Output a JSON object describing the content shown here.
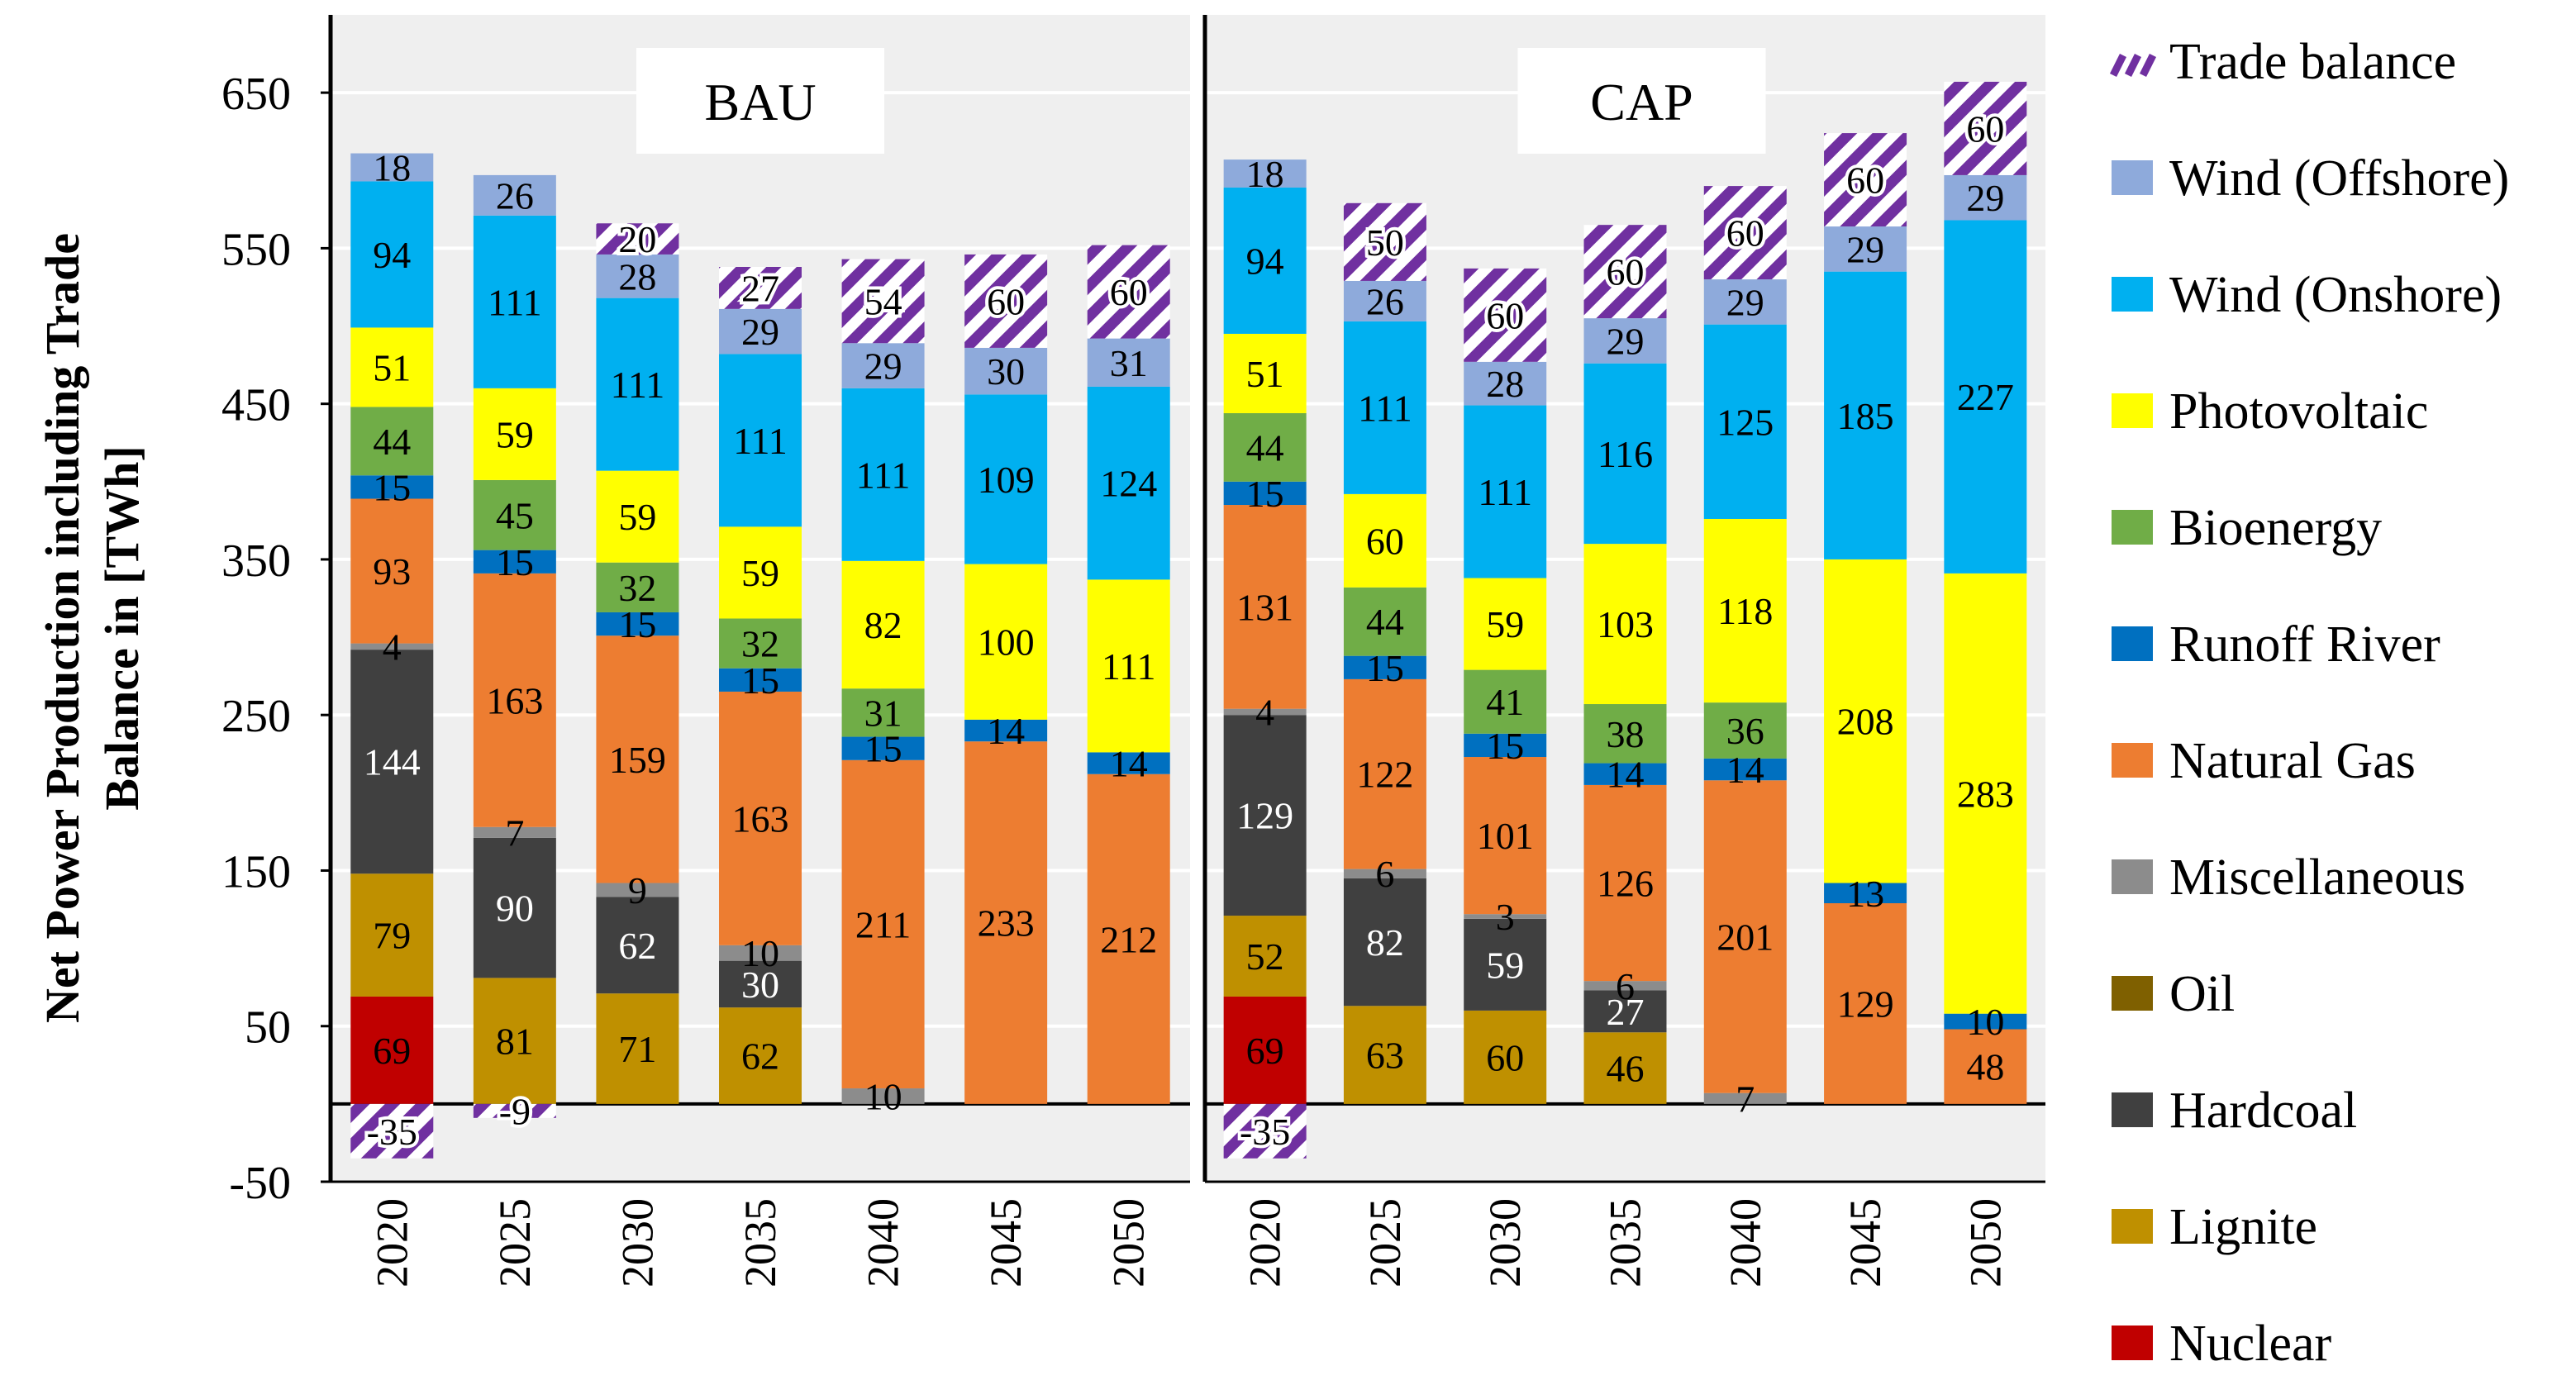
{
  "chart_data": {
    "type": "bar",
    "stacked": true,
    "ylabel": "Net Power Production including Trade Balance in [TWh]",
    "ylim": [
      -50,
      700
    ],
    "yticks": [
      650,
      550,
      450,
      350,
      250,
      150,
      50,
      -50
    ],
    "categories": [
      "2020",
      "2025",
      "2030",
      "2035",
      "2040",
      "2045",
      "2050"
    ],
    "legend": [
      "Trade balance",
      "Wind (Offshore)",
      "Wind (Onshore)",
      "Photovoltaic",
      "Bioenergy",
      "Runoff River",
      "Natural Gas",
      "Miscellaneous",
      "Oil",
      "Hardcoal",
      "Lignite",
      "Nuclear"
    ],
    "colors": {
      "Nuclear": "#c00000",
      "Lignite": "#bf9000",
      "Hardcoal": "#404040",
      "Oil": "#7f6000",
      "Miscellaneous": "#8c8c8c",
      "Natural Gas": "#ed7d31",
      "Runoff River": "#0070c0",
      "Bioenergy": "#70ad47",
      "Photovoltaic": "#ffff00",
      "Wind (Onshore)": "#00b0f0",
      "Wind (Offshore)": "#8eaadb",
      "Trade balance": "#7030a0"
    },
    "panels": [
      {
        "title": "BAU",
        "series": [
          {
            "name": "Nuclear",
            "values": [
              69,
              0,
              0,
              0,
              0,
              0,
              0
            ],
            "labels": [
              "69",
              "",
              "",
              "",
              "",
              "",
              ""
            ]
          },
          {
            "name": "Lignite",
            "values": [
              79,
              81,
              71,
              62,
              0,
              0,
              0
            ],
            "labels": [
              "79",
              "81",
              "71",
              "62",
              "",
              "",
              ""
            ]
          },
          {
            "name": "Oil",
            "values": [
              0,
              0,
              0,
              0,
              0,
              0,
              0
            ],
            "labels": [
              "",
              "",
              "",
              "",
              "",
              "",
              ""
            ]
          },
          {
            "name": "Hardcoal",
            "values": [
              144,
              90,
              62,
              30,
              0,
              0,
              0
            ],
            "labels": [
              "144",
              "90",
              "62",
              "30",
              "",
              "",
              ""
            ]
          },
          {
            "name": "Miscellaneous",
            "values": [
              4,
              7,
              9,
              10,
              10,
              0,
              0
            ],
            "labels": [
              "4",
              "7",
              "9",
              "10",
              "10",
              "",
              ""
            ]
          },
          {
            "name": "Natural Gas",
            "values": [
              93,
              163,
              159,
              163,
              211,
              233,
              212
            ],
            "labels": [
              "93",
              "163",
              "159",
              "163",
              "211",
              "233",
              "212"
            ]
          },
          {
            "name": "Runoff River",
            "values": [
              15,
              15,
              15,
              15,
              15,
              14,
              14
            ],
            "labels": [
              "15",
              "15",
              "15",
              "15",
              "15",
              "14",
              "14"
            ]
          },
          {
            "name": "Bioenergy",
            "values": [
              44,
              45,
              32,
              32,
              31,
              0,
              0
            ],
            "labels": [
              "44",
              "45",
              "32",
              "32",
              "31",
              "",
              ""
            ]
          },
          {
            "name": "Photovoltaic",
            "values": [
              51,
              59,
              59,
              59,
              82,
              100,
              111
            ],
            "labels": [
              "51",
              "59",
              "59",
              "59",
              "82",
              "100",
              "111"
            ]
          },
          {
            "name": "Wind (Onshore)",
            "values": [
              94,
              111,
              111,
              111,
              111,
              109,
              124
            ],
            "labels": [
              "94",
              "111",
              "111",
              "111",
              "111",
              "109",
              "124"
            ]
          },
          {
            "name": "Wind (Offshore)",
            "values": [
              18,
              26,
              28,
              29,
              29,
              30,
              31
            ],
            "labels": [
              "18",
              "26",
              "28",
              "29",
              "29",
              "30",
              "31"
            ]
          },
          {
            "name": "Trade balance",
            "values": [
              -35,
              -9,
              20,
              27,
              54,
              60,
              60
            ],
            "labels": [
              "-35",
              "-9",
              "20",
              "27",
              "54",
              "60",
              "60"
            ]
          }
        ]
      },
      {
        "title": "CAP",
        "series": [
          {
            "name": "Nuclear",
            "values": [
              69,
              0,
              0,
              0,
              0,
              0,
              0
            ],
            "labels": [
              "69",
              "",
              "",
              "",
              "",
              "",
              ""
            ]
          },
          {
            "name": "Lignite",
            "values": [
              52,
              63,
              60,
              46,
              0,
              0,
              0
            ],
            "labels": [
              "52",
              "63",
              "60",
              "46",
              "",
              "",
              ""
            ]
          },
          {
            "name": "Oil",
            "values": [
              0,
              0,
              0,
              0,
              0,
              0,
              0
            ],
            "labels": [
              "",
              "",
              "",
              "",
              "",
              "",
              ""
            ]
          },
          {
            "name": "Hardcoal",
            "values": [
              129,
              82,
              59,
              27,
              0,
              0,
              0
            ],
            "labels": [
              "129",
              "82",
              "59",
              "27",
              "",
              "",
              ""
            ]
          },
          {
            "name": "Miscellaneous",
            "values": [
              4,
              6,
              3,
              6,
              7,
              0,
              0
            ],
            "labels": [
              "4",
              "6",
              "3",
              "6",
              "7",
              "",
              ""
            ]
          },
          {
            "name": "Natural Gas",
            "values": [
              131,
              122,
              101,
              126,
              201,
              129,
              48
            ],
            "labels": [
              "131",
              "122",
              "101",
              "126",
              "201",
              "129",
              "48"
            ]
          },
          {
            "name": "Runoff River",
            "values": [
              15,
              15,
              15,
              14,
              14,
              13,
              10
            ],
            "labels": [
              "15",
              "15",
              "15",
              "14",
              "14",
              "13",
              "10"
            ]
          },
          {
            "name": "Bioenergy",
            "values": [
              44,
              44,
              41,
              38,
              36,
              0,
              0
            ],
            "labels": [
              "44",
              "44",
              "41",
              "38",
              "36",
              "",
              ""
            ]
          },
          {
            "name": "Photovoltaic",
            "values": [
              51,
              60,
              59,
              103,
              118,
              208,
              283
            ],
            "labels": [
              "51",
              "60",
              "59",
              "103",
              "118",
              "208",
              "283"
            ]
          },
          {
            "name": "Wind (Onshore)",
            "values": [
              94,
              111,
              111,
              116,
              125,
              185,
              227
            ],
            "labels": [
              "94",
              "111",
              "111",
              "116",
              "125",
              "185",
              "227"
            ]
          },
          {
            "name": "Wind (Offshore)",
            "values": [
              18,
              26,
              28,
              29,
              29,
              29,
              29
            ],
            "labels": [
              "18",
              "26",
              "28",
              "29",
              "29",
              "29",
              "29"
            ]
          },
          {
            "name": "Trade balance",
            "values": [
              -35,
              50,
              60,
              60,
              60,
              60,
              60
            ],
            "labels": [
              "-35",
              "50",
              "60",
              "60",
              "60",
              "60",
              "60"
            ]
          }
        ]
      }
    ]
  }
}
